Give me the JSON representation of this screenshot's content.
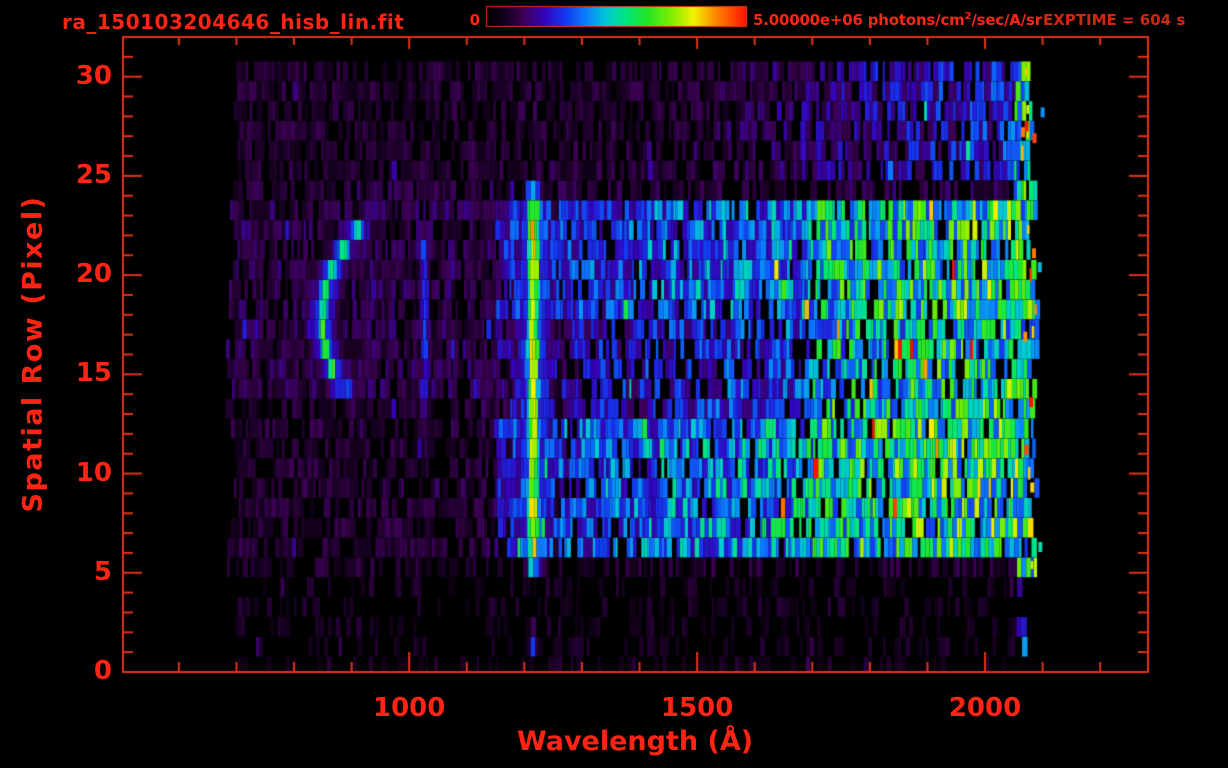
{
  "theme": {
    "background": "#000000",
    "accent": "#ff2413",
    "frame": "#e03418",
    "dim_red": "#cf2812"
  },
  "header": {
    "exptime": "EXPTIME = 604 s",
    "colorbar": {
      "min_label": "0",
      "max_label_main": "5.00000e+06 photons/cm",
      "max_label_sup": "2",
      "max_label_rest": "/sec/A/sr"
    }
  },
  "chart_data": {
    "type": "heatmap",
    "title": "ra_150103204646_hisb_lin.fit",
    "xlabel": "Wavelength (Å)",
    "ylabel": "Spatial Row (Pixel)",
    "x_range": [
      503,
      2283
    ],
    "y_range": [
      0,
      32
    ],
    "x_major_ticks": [
      1000,
      1500,
      2000
    ],
    "x_minor_step": 100,
    "y_major_ticks": [
      0,
      5,
      10,
      15,
      20,
      25,
      30
    ],
    "y_minor_step": 1,
    "exposure_seconds": 604,
    "colorbar": {
      "min": 0,
      "max": 5000000,
      "units": "photons/cm^2/sec/A/sr",
      "stops": [
        [
          0,
          "#000000"
        ],
        [
          0.07,
          "#160020"
        ],
        [
          0.14,
          "#3c0054"
        ],
        [
          0.22,
          "#3404bc"
        ],
        [
          0.3,
          "#1536f0"
        ],
        [
          0.38,
          "#0c7cff"
        ],
        [
          0.46,
          "#00c9d4"
        ],
        [
          0.54,
          "#00e87c"
        ],
        [
          0.62,
          "#25e625"
        ],
        [
          0.72,
          "#86ef00"
        ],
        [
          0.8,
          "#f2f200"
        ],
        [
          0.88,
          "#ff8c00"
        ],
        [
          1,
          "#ff1200"
        ]
      ]
    },
    "data_extent": {
      "wavelength_A": [
        680,
        2094
      ],
      "rows": [
        0,
        30
      ]
    },
    "noise_seed": 20150103,
    "regions": [
      {
        "name": "upper-noise-band",
        "rows": [
          25,
          30
        ],
        "lambda": [
          688,
          2090
        ],
        "level": [
          0.11,
          0.11
        ],
        "density": 0.72
      },
      {
        "name": "upper-right-brightening",
        "rows": [
          25,
          30
        ],
        "lambda": [
          1500,
          2066
        ],
        "level": [
          0.11,
          0.32
        ],
        "density": 0.8
      },
      {
        "name": "row24-noise",
        "rows": [
          24,
          24
        ],
        "lambda": [
          682,
          2090
        ],
        "level": [
          0.12,
          0.14
        ],
        "density": 0.7
      },
      {
        "name": "mid-left-noise",
        "rows": [
          14,
          23
        ],
        "lambda": [
          680,
          1150
        ],
        "level": [
          0.14,
          0.14
        ],
        "density": 0.78
      },
      {
        "name": "low-left-noise",
        "rows": [
          6,
          13
        ],
        "lambda": [
          680,
          1150
        ],
        "level": [
          0.11,
          0.12
        ],
        "density": 0.7
      },
      {
        "name": "continuum-rows6-12",
        "rows": [
          6,
          12
        ],
        "lambda": [
          1150,
          1700
        ],
        "level": [
          0.3,
          0.48
        ],
        "density": 0.86
      },
      {
        "name": "continuum-row13",
        "rows": [
          13,
          13
        ],
        "lambda": [
          1150,
          1700
        ],
        "level": [
          0.22,
          0.36
        ],
        "density": 0.8
      },
      {
        "name": "continuum-rows14-17",
        "rows": [
          14,
          17
        ],
        "lambda": [
          1150,
          1700
        ],
        "level": [
          0.22,
          0.36
        ],
        "density": 0.78
      },
      {
        "name": "continuum-rows18-23",
        "rows": [
          18,
          23
        ],
        "lambda": [
          1150,
          1700
        ],
        "level": [
          0.28,
          0.44
        ],
        "density": 0.85
      },
      {
        "name": "bright-right-rows6-12",
        "rows": [
          6,
          12
        ],
        "lambda": [
          1700,
          2062
        ],
        "level": [
          0.56,
          0.66
        ],
        "density": 0.9
      },
      {
        "name": "bright-right-rows13-17",
        "rows": [
          13,
          17
        ],
        "lambda": [
          1700,
          2062
        ],
        "level": [
          0.5,
          0.6
        ],
        "density": 0.85
      },
      {
        "name": "bright-right-rows18-23",
        "rows": [
          18,
          23
        ],
        "lambda": [
          1700,
          2062
        ],
        "level": [
          0.53,
          0.63
        ],
        "density": 0.88
      },
      {
        "name": "bottom-sparse-noise",
        "rows": [
          0,
          4
        ],
        "lambda": [
          700,
          2085
        ],
        "level": [
          0.08,
          0.08
        ],
        "density": 0.33
      },
      {
        "name": "row5-noise",
        "rows": [
          5,
          5
        ],
        "lambda": [
          680,
          2085
        ],
        "level": [
          0.1,
          0.11
        ],
        "density": 0.55
      },
      {
        "name": "terminal-green-edge",
        "rows": [
          5,
          30
        ],
        "lambda": [
          2052,
          2092
        ],
        "level": [
          0.55,
          0.62
        ],
        "density": 0.8
      },
      {
        "name": "terminal-edge-bottom",
        "rows": [
          0,
          4
        ],
        "lambda": [
          2052,
          2092
        ],
        "level": [
          0.35,
          0.35
        ],
        "density": 0.3
      },
      {
        "name": "outside-edge-specks",
        "rows": [
          0,
          30
        ],
        "lambda": [
          2092,
          2112
        ],
        "level": [
          0.3,
          0.3
        ],
        "density": 0.18
      }
    ],
    "features": [
      {
        "name": "lyman-alpha-emission",
        "lambda_center": 1216,
        "sigma": 9,
        "rows": [
          5,
          24
        ],
        "peak": 0.8
      },
      {
        "name": "lyman-alpha-halo",
        "lambda_center": 1216,
        "sigma": 24,
        "rows": [
          5.5,
          23.5
        ],
        "peak": 0.34
      },
      {
        "name": "lyman-alpha-echo-row1",
        "lambda_center": 1215,
        "sigma": 4,
        "rows": [
          0.4,
          1.9
        ],
        "peak": 0.33
      },
      {
        "name": "lyman-beta-emission",
        "lambda_center": 1027,
        "sigma": 6,
        "rows": [
          13,
          22
        ],
        "peak": 0.3
      },
      {
        "name": "arc-feature-core",
        "lambda_center": 849,
        "curvature": 3,
        "row_ref": 17.5,
        "sigma": 8,
        "rows": [
          14,
          22.3
        ],
        "peak": 0.6
      },
      {
        "name": "arc-feature-halo",
        "lambda_center": 849,
        "curvature": 3,
        "row_ref": 17.5,
        "sigma": 20,
        "rows": [
          13.3,
          23
        ],
        "peak": 0.3
      }
    ],
    "hot_specks": [
      {
        "lambda": 2072,
        "row": 27.5,
        "level": 1.0
      },
      {
        "lambda": 2066,
        "row": 27.2,
        "level": 0.9
      },
      {
        "lambda": 2086,
        "row": 26.9,
        "level": 0.95
      },
      {
        "lambda": 2085,
        "row": 21.1,
        "level": 0.9
      },
      {
        "lambda": 2095,
        "row": 20.4,
        "level": 0.45
      },
      {
        "lambda": 2080,
        "row": 13.6,
        "level": 1.0
      },
      {
        "lambda": 2072,
        "row": 11.2,
        "level": 0.95
      },
      {
        "lambda": 2082,
        "row": 9.3,
        "level": 0.82
      },
      {
        "lambda": 2070,
        "row": 16.9,
        "level": 0.88
      },
      {
        "lambda": 2096,
        "row": 6.3,
        "level": 0.5
      },
      {
        "lambda": 2100,
        "row": 28.2,
        "level": 0.4
      }
    ]
  }
}
